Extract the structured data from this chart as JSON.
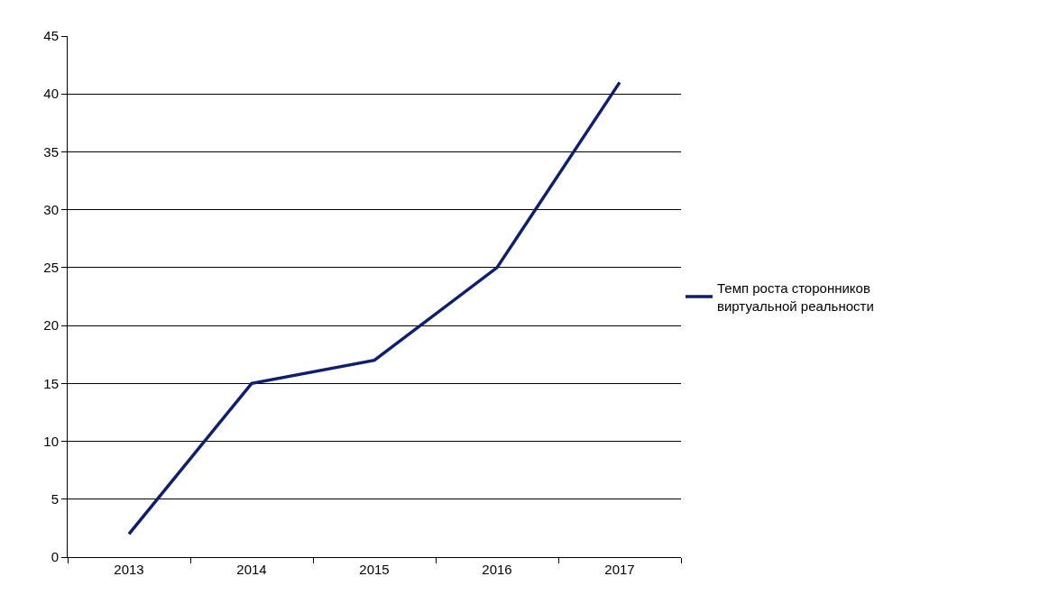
{
  "chart_data": {
    "type": "line",
    "categories": [
      "2013",
      "2014",
      "2015",
      "2016",
      "2017"
    ],
    "series": [
      {
        "name": "Темп роста сторонников виртуальной реальности",
        "color": "#0d1f6e",
        "values": [
          2,
          15,
          17,
          25,
          41
        ]
      }
    ],
    "ylim": [
      0,
      45
    ],
    "yticks": [
      0,
      5,
      10,
      15,
      20,
      25,
      30,
      35,
      40,
      45
    ],
    "grid": "y",
    "legend": "right",
    "marker": "none",
    "line_style": "solid"
  }
}
